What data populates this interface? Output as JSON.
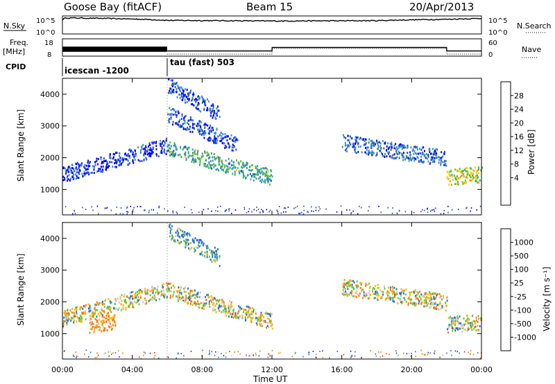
{
  "header": {
    "title": "Goose Bay (fitACF)",
    "beam": "Beam 15",
    "date": "20/Apr/2013"
  },
  "top_panels": {
    "nsky_label": "N.Sky",
    "nsearch_label": "N.Search",
    "noise_ticks": [
      "10^5",
      "10^0"
    ],
    "freq_label_1": "Freq.",
    "freq_label_2": "[MHz]",
    "freq_ticks": [
      "18",
      "8"
    ],
    "nave_label": "Nave",
    "nave_ticks": [
      "60",
      "0"
    ],
    "cpid_label": "CPID",
    "cpid_1": "icescan -1200",
    "cpid_2": "tau (fast) 503"
  },
  "power_panel": {
    "ylabel": "Slant Range [km]",
    "yticks": [
      "4000",
      "3000",
      "2000",
      "1000"
    ],
    "colorbar_label": "Power [dB]",
    "colorbar_ticks": [
      "28",
      "24",
      "20",
      "16",
      "12",
      "8",
      "4"
    ],
    "colors": [
      "#0000ff",
      "#2850c8",
      "#3c8cdc",
      "#3c9c78",
      "#3cc83c",
      "#f0d200",
      "#ff9600",
      "#ff4000",
      "#ff0000"
    ]
  },
  "velocity_panel": {
    "ylabel": "Slant Range [km]",
    "yticks": [
      "4000",
      "3000",
      "2000",
      "1000"
    ],
    "colorbar_label": "Velocity [m s⁻¹]",
    "colorbar_ticks": [
      "1000",
      "500",
      "100",
      "25",
      "-25",
      "-100",
      "-500",
      "-1000"
    ],
    "colors": [
      "#1e3cb4",
      "#286ed2",
      "#2d8c5a",
      "#64c83c",
      "#c8c8c8",
      "#c8c8c8",
      "#ffb400",
      "#ff7800",
      "#ff2800"
    ]
  },
  "x_axis": {
    "label": "Time UT",
    "ticks": [
      "00:00",
      "04:00",
      "08:00",
      "12:00",
      "16:00",
      "20:00",
      "00:00"
    ]
  },
  "chart_data": [
    {
      "type": "line",
      "title": "N.Sky / N.Search noise",
      "x": [
        0,
        0.2,
        6,
        12,
        18,
        22,
        24
      ],
      "ylim": [
        1,
        100000
      ],
      "scale": "log",
      "values_nsky": [
        8000,
        30000,
        6000,
        4000,
        5000,
        12000,
        20000
      ]
    },
    {
      "type": "line",
      "title": "Freq. / Nave",
      "x": [
        0,
        6,
        6.01,
        12,
        12.01,
        22,
        22.01,
        24
      ],
      "freq_mhz": [
        13,
        13,
        11,
        11,
        13,
        13,
        11,
        11
      ],
      "freq_ylim": [
        8,
        18
      ],
      "nave": [
        null,
        null,
        7,
        7,
        27,
        27,
        7,
        7
      ],
      "nave_ylim": [
        0,
        60
      ]
    },
    {
      "type": "heatmap",
      "title": "Power [dB]",
      "xlim": [
        0,
        24
      ],
      "ylim": [
        200,
        4500
      ],
      "zlim": [
        0,
        30
      ],
      "bands": [
        {
          "x": [
            6,
            12
          ],
          "y_start": 2300,
          "y_end": 1400,
          "power": 14
        },
        {
          "x": [
            6,
            10
          ],
          "y_start": 3400,
          "y_end": 2400,
          "power": 6
        },
        {
          "x": [
            6,
            9
          ],
          "y_start": 4300,
          "y_end": 3400,
          "power": 6
        },
        {
          "x": [
            16,
            22
          ],
          "y_start": 2500,
          "y_end": 2000,
          "power": 8
        },
        {
          "x": [
            22,
            24
          ],
          "y_start": 1400,
          "y_end": 1500,
          "power": 20
        },
        {
          "x": [
            0,
            6
          ],
          "y_start": 1500,
          "y_end": 2400,
          "power": 4
        }
      ]
    },
    {
      "type": "heatmap",
      "title": "Velocity [m s⁻¹]",
      "xlim": [
        0,
        24
      ],
      "ylim": [
        200,
        4500
      ],
      "zlim": [
        -1000,
        1000
      ],
      "bands": [
        {
          "x": [
            6,
            12
          ],
          "y_start": 2400,
          "y_end": 1400,
          "velocity": 0
        },
        {
          "x": [
            6,
            9
          ],
          "y_start": 4300,
          "y_end": 3400,
          "velocity": 100
        },
        {
          "x": [
            16,
            22
          ],
          "y_start": 2500,
          "y_end": 2000,
          "velocity": 0
        },
        {
          "x": [
            22,
            24
          ],
          "y_start": 1300,
          "y_end": 1400,
          "velocity": 0
        },
        {
          "x": [
            0,
            6
          ],
          "y_start": 1500,
          "y_end": 2400,
          "velocity": 0
        },
        {
          "x": [
            1.5,
            3
          ],
          "y_start": 1300,
          "y_end": 1400,
          "velocity": -150
        }
      ]
    }
  ]
}
